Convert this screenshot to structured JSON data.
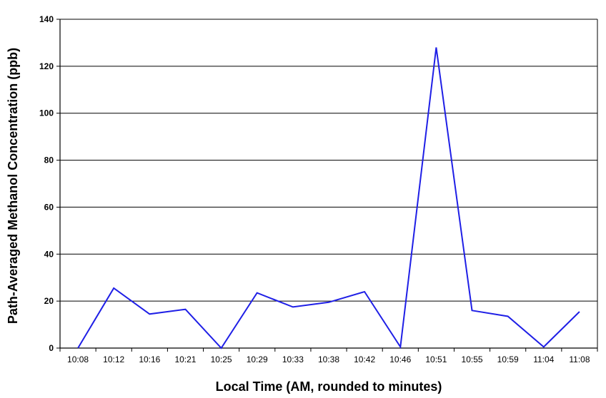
{
  "chart_data": {
    "type": "line",
    "title": "",
    "xlabel": "Local Time (AM, rounded to minutes)",
    "ylabel": "Path-Averaged Methanol Concentration (ppb)",
    "ylim": [
      0,
      140
    ],
    "yticks": [
      0,
      20,
      40,
      60,
      80,
      100,
      120,
      140
    ],
    "grid": "horizontal",
    "legend": "none",
    "categories": [
      "10:08",
      "10:12",
      "10:16",
      "10:21",
      "10:25",
      "10:29",
      "10:33",
      "10:38",
      "10:42",
      "10:46",
      "10:51",
      "10:55",
      "10:59",
      "11:04",
      "11:08"
    ],
    "series": [
      {
        "color": "#1f1fe6",
        "values": [
          0,
          25.5,
          14.5,
          16.5,
          0,
          23.5,
          17.5,
          19.5,
          24,
          0.5,
          128,
          16,
          13.5,
          0.5,
          15.5
        ]
      }
    ]
  }
}
